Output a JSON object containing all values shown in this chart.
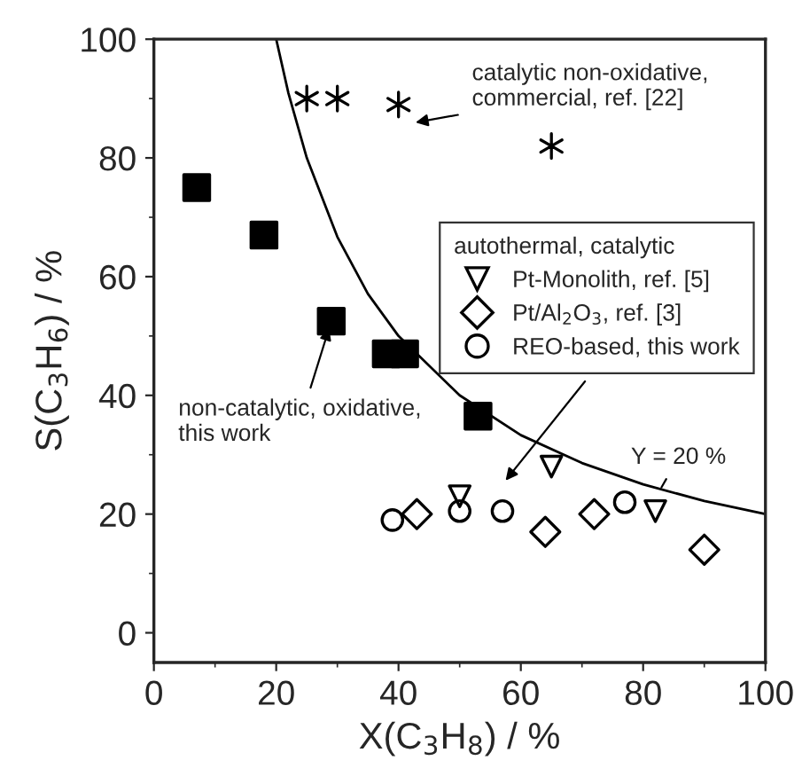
{
  "chart_data": {
    "type": "scatter",
    "xlabel": "X(C$_{3}$H$_{8}$) / %",
    "ylabel": "S(C$_{3}$H$_{6}$) / %",
    "legend_title": "autothermal, catalytic",
    "legend": "right",
    "xlim": [
      0,
      100
    ],
    "ylim": [
      -5,
      100
    ],
    "xticks": [
      0,
      20,
      40,
      60,
      80,
      100
    ],
    "yticks": [
      0,
      20,
      40,
      60,
      80,
      100
    ],
    "grid": false,
    "series": [
      {
        "marker": "square",
        "color": "#000000",
        "x": [
          7,
          18,
          29,
          38,
          41,
          53
        ],
        "values": [
          75,
          67,
          52.5,
          47,
          47,
          36.5
        ]
      },
      {
        "marker": "cross",
        "color": "#000000",
        "x": [
          25,
          30,
          40,
          65
        ],
        "values": [
          90,
          90,
          89,
          82
        ]
      },
      {
        "marker": "triangle",
        "name": "Pt-Monolith, ref. [5]",
        "color": "#000000",
        "x": [
          50,
          65,
          82
        ],
        "values": [
          23,
          28,
          20.5
        ]
      },
      {
        "marker": "diamond",
        "name": "Pt/Al$_{2}$O$_{3}$, ref. [3]",
        "color": "#000000",
        "x": [
          43,
          64,
          72,
          90
        ],
        "values": [
          20,
          17,
          20,
          14
        ]
      },
      {
        "marker": "circle",
        "name": "REO-based, this work",
        "color": "#000000",
        "x": [
          39,
          50,
          57,
          77
        ],
        "values": [
          19,
          20.5,
          20.5,
          22
        ]
      },
      {
        "type": "line",
        "marker": "none",
        "line_style": "solid",
        "color": "#000000",
        "x": [
          20,
          22,
          25,
          30,
          35,
          40,
          50,
          60,
          70,
          80,
          90,
          100
        ],
        "values": [
          100,
          90.9,
          80,
          66.7,
          57.1,
          50,
          40,
          33.3,
          28.6,
          25,
          22.2,
          20
        ]
      }
    ],
    "annotations": [
      "catalytic non-oxidative,\ncommercial, ref. [22]",
      {
        "text": "non-catalytic, oxidative,\nthis work",
        "x": 29,
        "y": 52.5
      },
      {
        "text": "Y = 20 %",
        "x": 83,
        "y": 24.5
      }
    ]
  }
}
